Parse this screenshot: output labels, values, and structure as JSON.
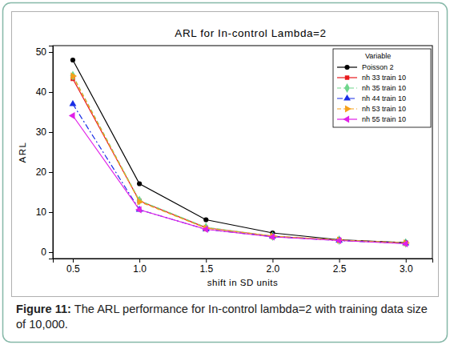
{
  "chart_data": {
    "type": "line",
    "title": "ARL for In-control Lambda=2",
    "x_label": "shift in SD units",
    "y_label": "ARL",
    "legend_title": "Variable",
    "legend": "top-right",
    "caption": {
      "label": "Figure 11:",
      "text": "The ARL performance for In-control lambda=2 with training data size of 10,000."
    },
    "x": [
      0.5,
      1.0,
      1.5,
      2.0,
      2.5,
      3.0
    ],
    "xlim": [
      0.35,
      3.2
    ],
    "xticks": [
      0.5,
      {
        "value": 1,
        "label": "1.0"
      },
      1.5,
      {
        "value": 2,
        "label": "2.0"
      },
      2.5,
      {
        "value": 3,
        "label": "3.0"
      }
    ],
    "ylim": [
      -1.6,
      51.6
    ],
    "yticks": [
      0,
      10,
      20,
      30,
      40,
      50
    ],
    "grid": false,
    "series": [
      {
        "name": "Poisson 2",
        "color": "#000000",
        "marker": "circle",
        "line_style": "solid",
        "values": [
          48.0,
          17.1,
          8.1,
          4.8,
          3.1,
          2.4
        ]
      },
      {
        "name": "nh 33 train 10",
        "color": "#e8191c",
        "marker": "square",
        "line_style": "solid",
        "values": [
          43.3,
          12.8,
          6.1,
          4.0,
          3.0,
          2.3
        ]
      },
      {
        "name": "nh 35 train 10",
        "color": "#6fd68c",
        "marker": "diamond",
        "line_style": "dashed",
        "values": [
          44.1,
          12.9,
          6.2,
          4.0,
          3.0,
          2.3
        ]
      },
      {
        "name": "nh 44 train 10",
        "color": "#1a2ee6",
        "marker": "triangle",
        "line_style": "dashdot",
        "values": [
          37.0,
          10.6,
          5.7,
          3.9,
          2.9,
          2.2
        ]
      },
      {
        "name": "nh 53 train 10",
        "color": "#f5a01a",
        "marker": "triangle-right",
        "line_style": "dashed",
        "values": [
          44.0,
          12.6,
          6.0,
          4.0,
          3.0,
          2.3
        ]
      },
      {
        "name": "nh 55 train 10",
        "color": "#e020e8",
        "marker": "triangle-left",
        "line_style": "solid",
        "values": [
          34.1,
          10.6,
          5.7,
          3.8,
          2.9,
          2.1
        ]
      }
    ]
  }
}
